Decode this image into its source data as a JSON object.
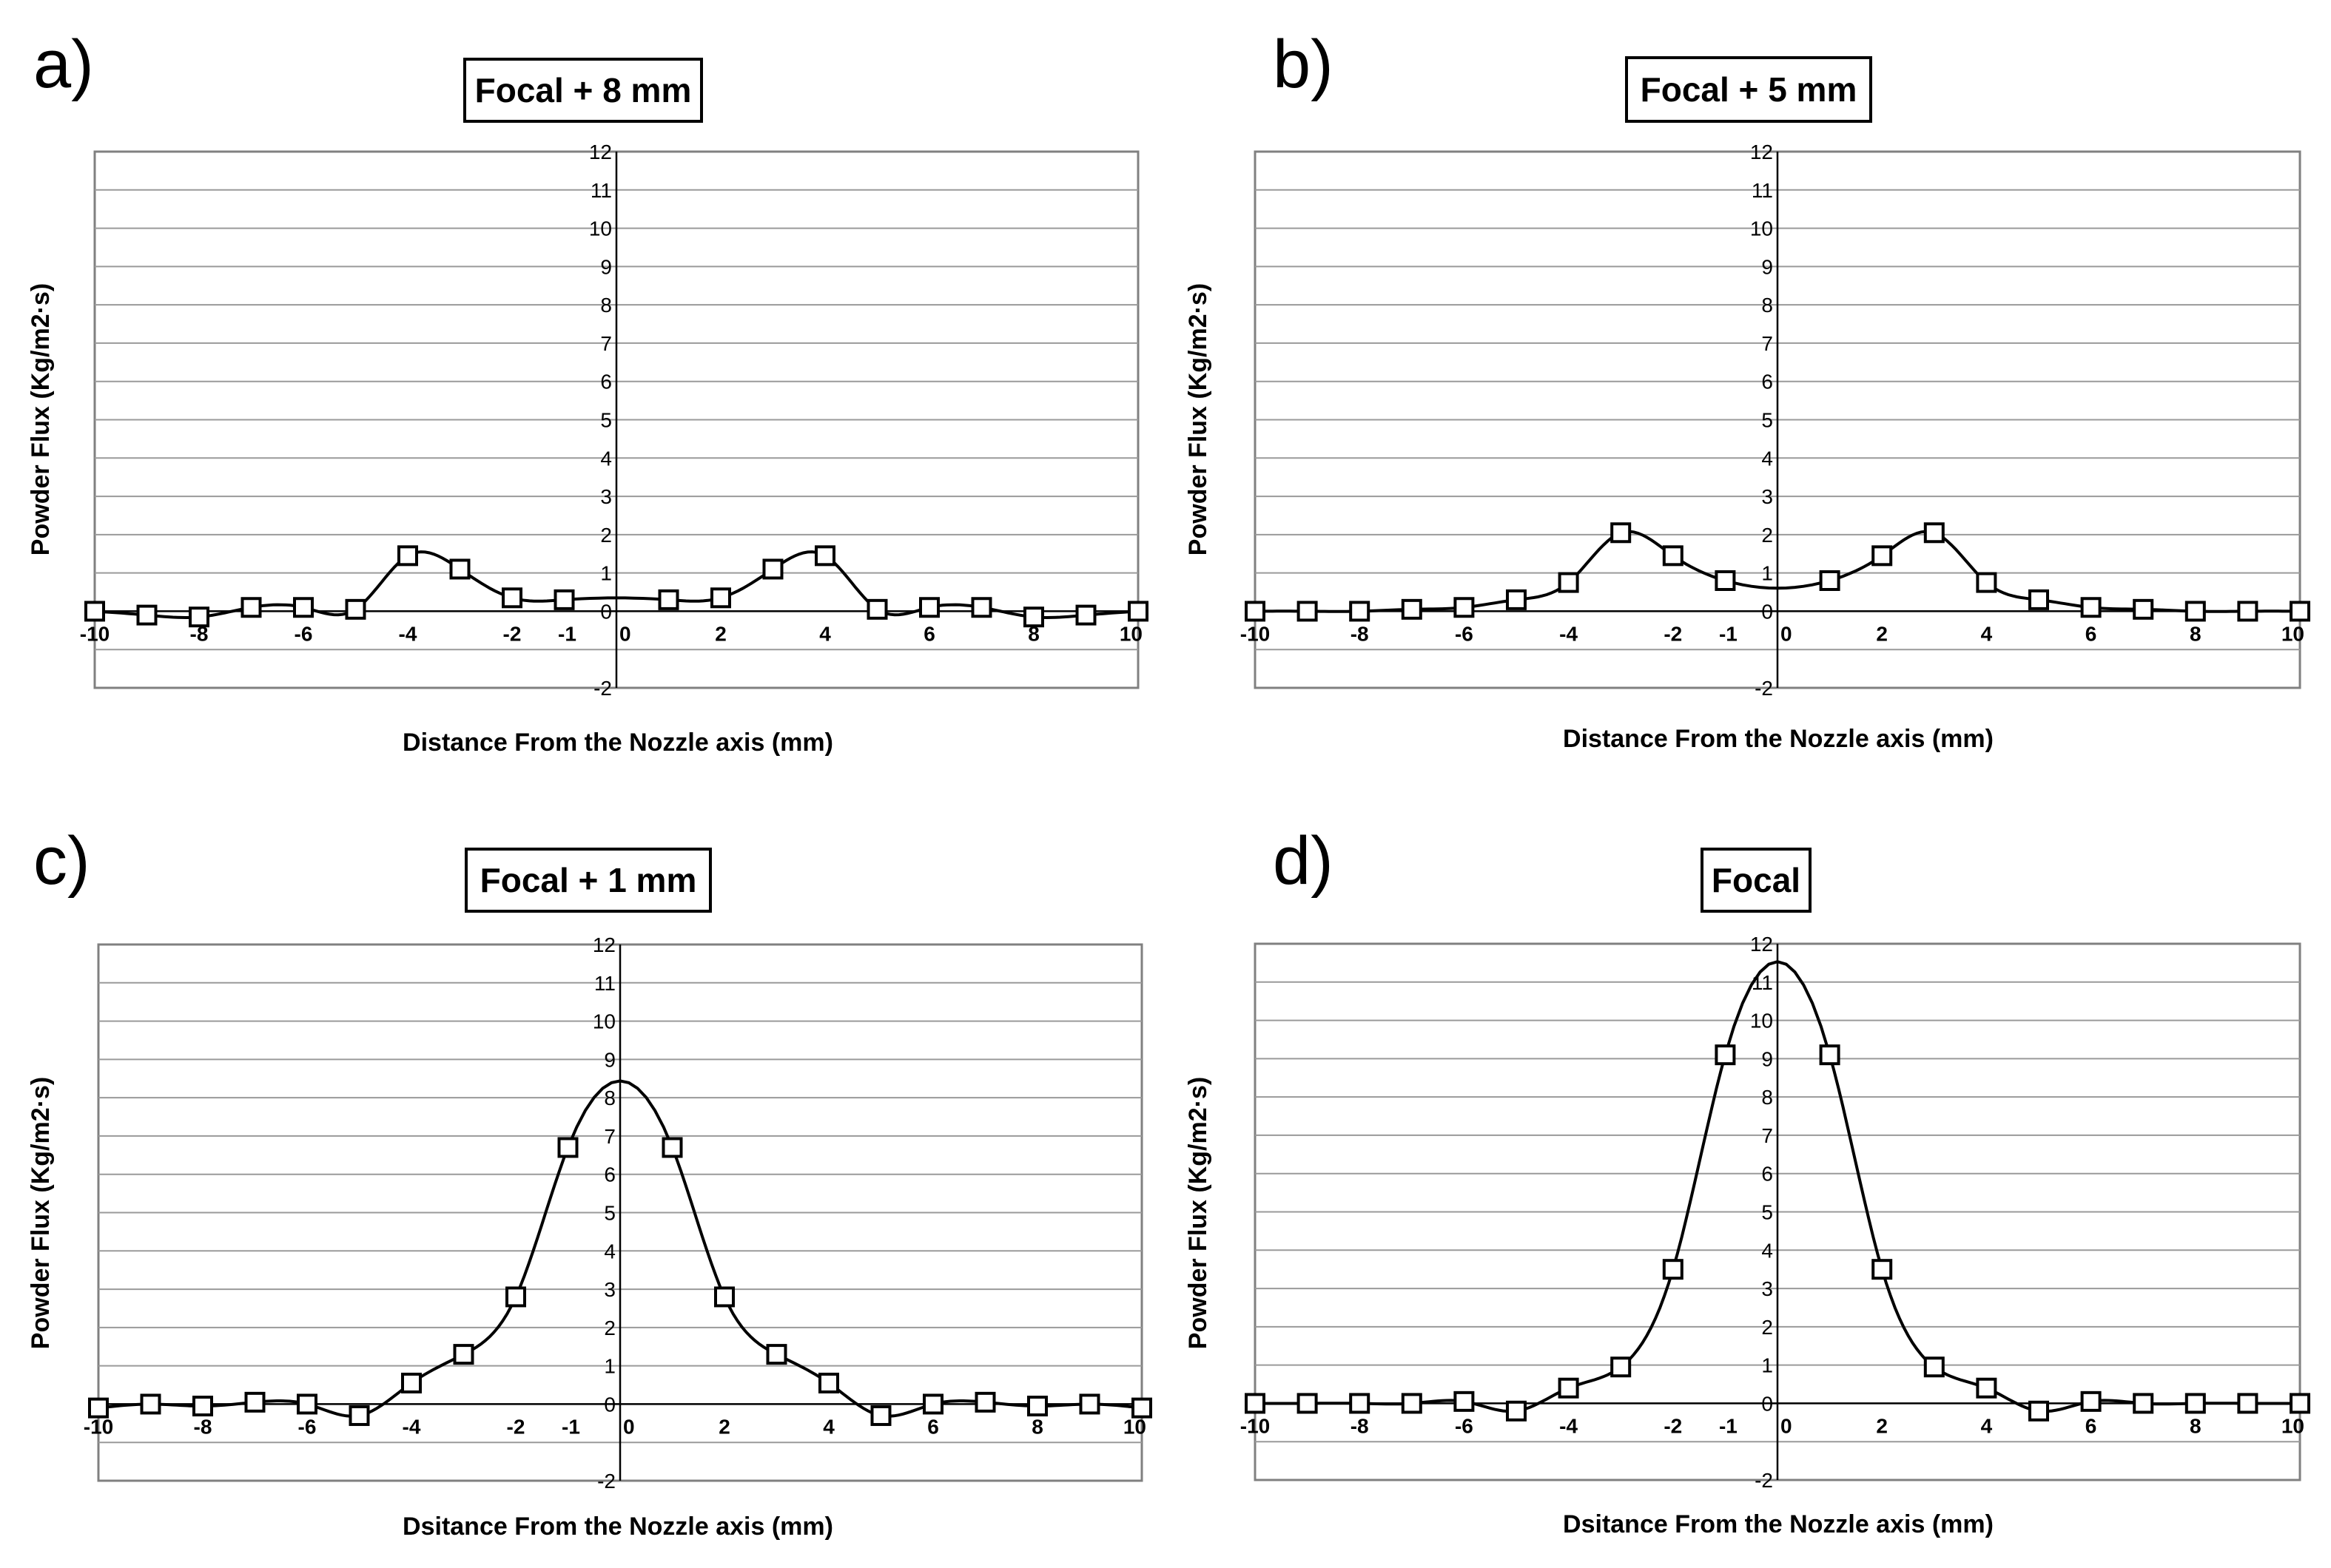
{
  "chart_data": [
    {
      "type": "line",
      "panel_label": "a)",
      "title": "Focal + 8 mm",
      "xlabel": "Distance From the Nozzle axis (mm)",
      "ylabel": "Powder Flux (Kg/m2·s)",
      "xlim": [
        -10,
        10
      ],
      "ylim": [
        -2,
        12
      ],
      "xticks": [
        -10,
        -8,
        -6,
        -4,
        -2,
        -1,
        0,
        2,
        4,
        6,
        8,
        10
      ],
      "yticks": [
        -2,
        0,
        1,
        2,
        3,
        4,
        5,
        6,
        7,
        8,
        9,
        10,
        11,
        12
      ],
      "grid": true,
      "series": [
        {
          "name": "Powder flux",
          "marker": "square",
          "x": [
            -10,
            -9,
            -8,
            -7,
            -6,
            -5,
            -4,
            -3,
            -2,
            -1,
            1,
            2,
            3,
            4,
            5,
            6,
            7,
            8,
            9,
            10
          ],
          "y": [
            0,
            -0.1,
            -0.15,
            0.1,
            0.1,
            0.05,
            1.45,
            1.1,
            0.35,
            0.3,
            0.3,
            0.35,
            1.1,
            1.45,
            0.05,
            0.1,
            0.1,
            -0.15,
            -0.1,
            0
          ]
        }
      ]
    },
    {
      "type": "line",
      "panel_label": "b)",
      "title": "Focal + 5 mm",
      "xlabel": "Distance From the Nozzle axis (mm)",
      "ylabel": "Powder Flux (Kg/m2·s)",
      "xlim": [
        -10,
        10
      ],
      "ylim": [
        -2,
        12
      ],
      "xticks": [
        -10,
        -8,
        -6,
        -4,
        -2,
        -1,
        0,
        2,
        4,
        6,
        8,
        10
      ],
      "yticks": [
        -2,
        0,
        1,
        2,
        3,
        4,
        5,
        6,
        7,
        8,
        9,
        10,
        11,
        12
      ],
      "grid": true,
      "series": [
        {
          "name": "Powder flux",
          "marker": "square",
          "x": [
            -10,
            -9,
            -8,
            -7,
            -6,
            -5,
            -4,
            -3,
            -2,
            -1,
            1,
            2,
            3,
            4,
            5,
            6,
            7,
            8,
            9,
            10
          ],
          "y": [
            0,
            0,
            0,
            0.05,
            0.1,
            0.3,
            0.75,
            2.05,
            1.45,
            0.8,
            0.8,
            1.45,
            2.05,
            0.75,
            0.3,
            0.1,
            0.05,
            0,
            0,
            0
          ]
        }
      ]
    },
    {
      "type": "line",
      "panel_label": "c)",
      "title": "Focal + 1 mm",
      "xlabel": "Dsitance From the Nozzle axis (mm)",
      "ylabel": "Powder Flux (Kg/m2·s)",
      "xlim": [
        -10,
        10
      ],
      "ylim": [
        -2,
        12
      ],
      "xticks": [
        -10,
        -8,
        -6,
        -4,
        -2,
        -1,
        0,
        2,
        4,
        6,
        8,
        10
      ],
      "yticks": [
        -2,
        0,
        1,
        2,
        3,
        4,
        5,
        6,
        7,
        8,
        9,
        10,
        11,
        12
      ],
      "grid": true,
      "series": [
        {
          "name": "Powder flux",
          "marker": "square",
          "x": [
            -10,
            -9,
            -8,
            -7,
            -6,
            -5,
            -4,
            -3,
            -2,
            -1,
            1,
            2,
            3,
            4,
            5,
            6,
            7,
            8,
            9,
            10
          ],
          "y": [
            -0.1,
            0,
            -0.05,
            0.05,
            0,
            -0.3,
            0.55,
            1.3,
            2.8,
            6.7,
            6.7,
            2.8,
            1.3,
            0.55,
            -0.3,
            0,
            0.05,
            -0.05,
            0,
            -0.1
          ]
        }
      ]
    },
    {
      "type": "line",
      "panel_label": "d)",
      "title": "Focal",
      "xlabel": "Dsitance From the Nozzle axis (mm)",
      "ylabel": "Powder Flux (Kg/m2·s)",
      "xlim": [
        -10,
        10
      ],
      "ylim": [
        -2,
        12
      ],
      "xticks": [
        -10,
        -8,
        -6,
        -4,
        -2,
        -1,
        0,
        2,
        4,
        6,
        8,
        10
      ],
      "yticks": [
        -2,
        0,
        1,
        2,
        3,
        4,
        5,
        6,
        7,
        8,
        9,
        10,
        11,
        12
      ],
      "grid": true,
      "series": [
        {
          "name": "Powder flux",
          "marker": "square",
          "x": [
            -10,
            -9,
            -8,
            -7,
            -6,
            -5,
            -4,
            -3,
            -2,
            -1,
            1,
            2,
            3,
            4,
            5,
            6,
            7,
            8,
            9,
            10
          ],
          "y": [
            0,
            0,
            0,
            0,
            0.05,
            -0.2,
            0.4,
            0.95,
            3.5,
            9.1,
            9.1,
            3.5,
            0.95,
            0.4,
            -0.2,
            0.05,
            0,
            0,
            0,
            0
          ]
        }
      ]
    }
  ]
}
